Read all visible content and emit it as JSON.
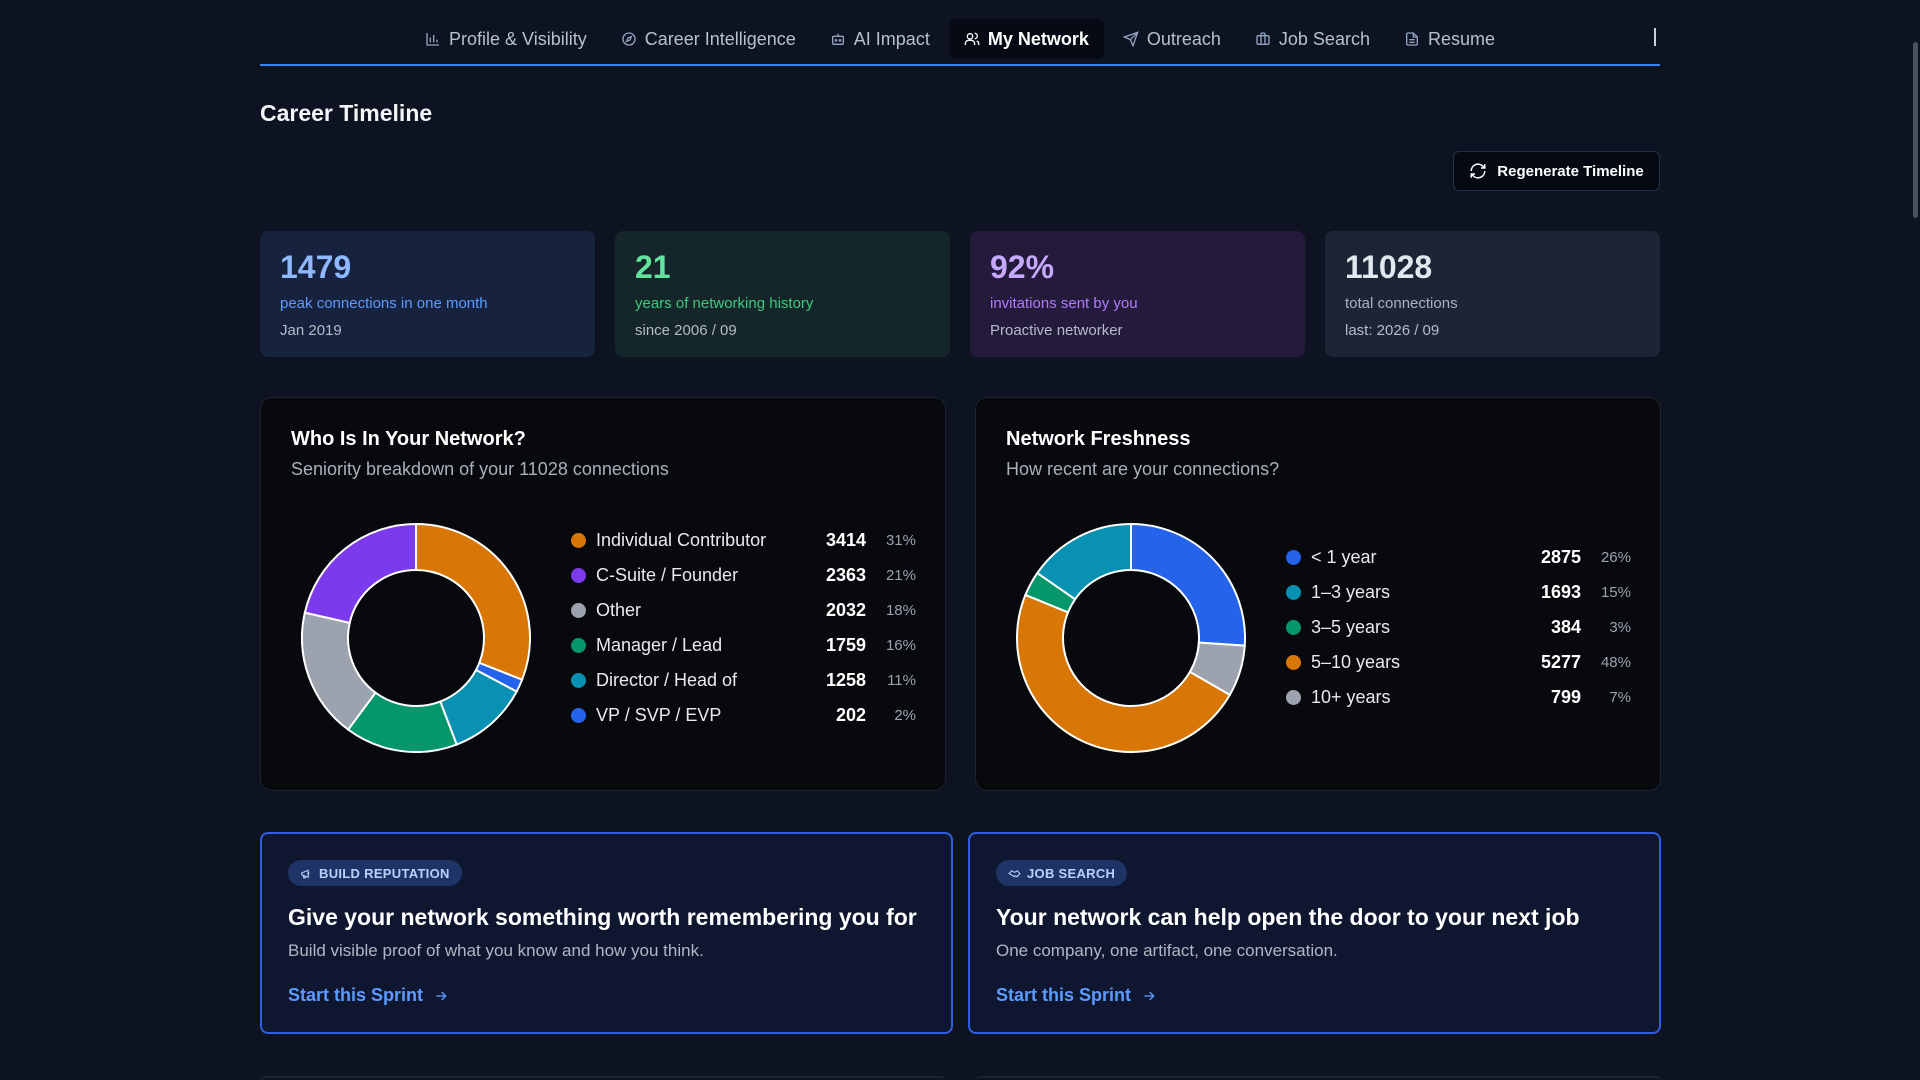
{
  "nav": {
    "tabs": [
      {
        "label": "Profile & Visibility",
        "icon": "bar-chart-icon"
      },
      {
        "label": "Career Intelligence",
        "icon": "compass-icon"
      },
      {
        "label": "AI Impact",
        "icon": "robot-icon"
      },
      {
        "label": "My Network",
        "icon": "users-icon",
        "active": true
      },
      {
        "label": "Outreach",
        "icon": "send-icon"
      },
      {
        "label": "Job Search",
        "icon": "briefcase-icon"
      },
      {
        "label": "Resume",
        "icon": "document-icon"
      }
    ]
  },
  "page": {
    "title": "Career Timeline",
    "regenerate_label": "Regenerate Timeline"
  },
  "stats": [
    {
      "value": "1479",
      "label": "peak connections in one month",
      "sub": "Jan 2019",
      "accent": "#5c9bff"
    },
    {
      "value": "21",
      "label": "years of networking history",
      "sub": "since 2006 / 09",
      "accent": "#3ccb7d"
    },
    {
      "value": "92%",
      "label": "invitations sent by you",
      "sub": "Proactive networker",
      "accent": "#b07cff"
    },
    {
      "value": "11028",
      "label": "total connections",
      "sub": "last: 2026 / 09",
      "accent": "#aab2be"
    }
  ],
  "charts": {
    "seniority": {
      "title": "Who Is In Your Network?",
      "subtitle": "Seniority breakdown of your 11028 connections"
    },
    "freshness": {
      "title": "Network Freshness",
      "subtitle": "How recent are your connections?"
    }
  },
  "chart_data": [
    {
      "type": "pie",
      "title": "Who Is In Your Network?",
      "subtitle": "Seniority breakdown of your 11028 connections",
      "categories": [
        "Individual Contributor",
        "C-Suite / Founder",
        "Other",
        "Manager / Lead",
        "Director / Head of",
        "VP / SVP / EVP"
      ],
      "values": [
        3414,
        2363,
        2032,
        1759,
        1258,
        202
      ],
      "percent_labels": [
        "31%",
        "21%",
        "18%",
        "16%",
        "11%",
        "2%"
      ],
      "colors": [
        "#d97706",
        "#7c3aed",
        "#9ca3af",
        "#059669",
        "#0891b2",
        "#2563eb"
      ],
      "donut_order": [
        "Individual Contributor",
        "VP / SVP / EVP",
        "Director / Head of",
        "Manager / Lead",
        "Other",
        "C-Suite / Founder"
      ]
    },
    {
      "type": "pie",
      "title": "Network Freshness",
      "subtitle": "How recent are your connections?",
      "categories": [
        "< 1 year",
        "1–3 years",
        "3–5 years",
        "5–10 years",
        "10+ years"
      ],
      "values": [
        2875,
        1693,
        384,
        5277,
        799
      ],
      "percent_labels": [
        "26%",
        "15%",
        "3%",
        "48%",
        "7%"
      ],
      "colors": [
        "#2563eb",
        "#0891b2",
        "#059669",
        "#d97706",
        "#9ca3af"
      ],
      "donut_order": [
        "< 1 year",
        "10+ years",
        "5–10 years",
        "3–5 years",
        "1–3 years"
      ]
    }
  ],
  "sprints": [
    {
      "badge": "BUILD REPUTATION",
      "badge_icon": "megaphone-icon",
      "title": "Give your network something worth remembering you for",
      "description": "Build visible proof of what you know and how you think.",
      "cta": "Start this Sprint"
    },
    {
      "badge": "JOB SEARCH",
      "badge_icon": "handshake-icon",
      "title": "Your network can help open the door to your next job",
      "description": "One company, one artifact, one conversation.",
      "cta": "Start this Sprint"
    }
  ]
}
